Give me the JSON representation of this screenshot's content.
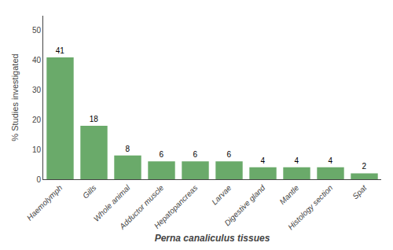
{
  "chart_data": {
    "type": "bar",
    "categories": [
      "Haemolymph",
      "Gills",
      "Whole animal",
      "Adductor muscle",
      "Hepatopancreas",
      "Larvae",
      "Digestive gland",
      "Mantle",
      "Histology section",
      "Spat"
    ],
    "values": [
      41,
      18,
      8,
      6,
      6,
      6,
      4,
      4,
      4,
      2
    ],
    "color": "#6aaa6a",
    "xlabel": "Perna canaliculus tissues",
    "ylabel": "% Studies investigated",
    "ylim": [
      0,
      55
    ],
    "yticks": [
      0,
      10,
      20,
      30,
      40,
      50
    ],
    "grid": false,
    "data_labels": true
  }
}
